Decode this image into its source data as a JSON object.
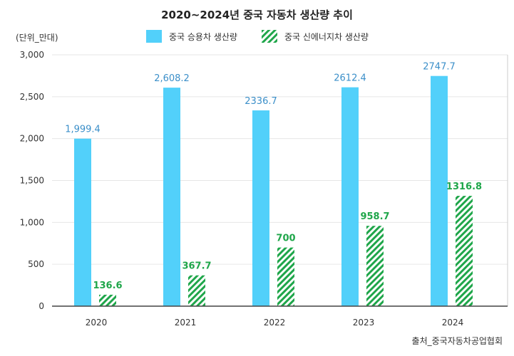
{
  "chart_data": {
    "type": "bar",
    "title": "2020~2024년 중국 자동차 생산량 추이",
    "unit_label": "(단위_만대)",
    "source": "출처_중국자동차공업협회",
    "categories": [
      "2020",
      "2021",
      "2022",
      "2023",
      "2024"
    ],
    "series": [
      {
        "name": "중국 승용차 생산량",
        "values": [
          1999.4,
          2608.2,
          2336.7,
          2612.4,
          2747.7
        ],
        "labels": [
          "1,999.4",
          "2,608.2",
          "2336.7",
          "2612.4",
          "2747.7"
        ],
        "color": "#52d0fa",
        "label_color": "#3b8fc9",
        "pattern": "solid"
      },
      {
        "name": "중국 신에너지차 생산량",
        "values": [
          136.6,
          367.7,
          700,
          958.7,
          1316.8
        ],
        "labels": [
          "136.6",
          "367.7",
          "700",
          "958.7",
          "1316.8"
        ],
        "color": "#1fa64a",
        "label_color": "#1fa64a",
        "pattern": "diagonal-hatch"
      }
    ],
    "yticks": [
      "0",
      "500",
      "1,000",
      "1,500",
      "2,000",
      "2,500",
      "3,000"
    ],
    "ylim": [
      0,
      3000
    ],
    "grid": true,
    "legend": "top-center"
  }
}
